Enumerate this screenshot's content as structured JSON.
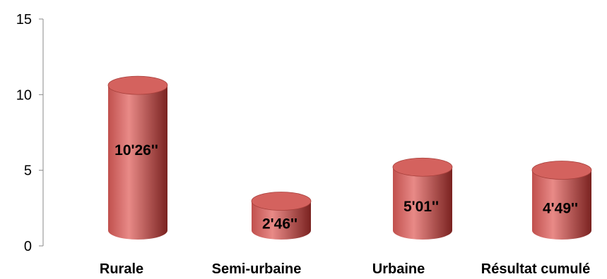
{
  "chart_data": {
    "type": "bar",
    "style": "3d-cylinder",
    "categories": [
      "Rurale",
      "Semi-urbaine",
      "Urbaine",
      "Résultat cumulé"
    ],
    "values": [
      10.43,
      2.77,
      5.02,
      4.82
    ],
    "data_labels": [
      "10'26''",
      "2'46''",
      "5'01''",
      "4'49''"
    ],
    "ylim": [
      0,
      15
    ],
    "yticks": [
      0,
      5,
      10,
      15
    ],
    "grid": false,
    "legend": "none",
    "colors": {
      "bar_body": "#c0504d",
      "bar_highlight": "#e88a87",
      "bar_shadow": "#7a2220",
      "bar_top": "#d4625e",
      "label_text": "#000000",
      "axis": "#888888"
    }
  }
}
